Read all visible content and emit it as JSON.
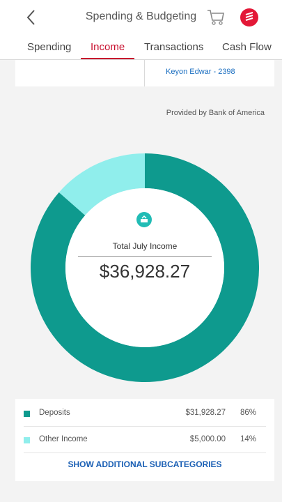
{
  "header": {
    "title": "Spending & Budgeting",
    "back_icon": "chevron-left-icon",
    "cart_icon": "cart-icon",
    "logo_icon": "bank-logo-icon",
    "brand_color": "#e31837"
  },
  "tabs": [
    {
      "label": "Spending",
      "active": false
    },
    {
      "label": "Income",
      "active": true
    },
    {
      "label": "Transactions",
      "active": false
    },
    {
      "label": "Cash Flow",
      "active": false
    }
  ],
  "account": {
    "name": "Keyon Edwar - 2398"
  },
  "provider": "Provided by Bank of America",
  "summary": {
    "label": "Total July Income",
    "value": "$36,928.27",
    "icon": "income-icon"
  },
  "chart_data": {
    "type": "pie",
    "categories": [
      "Deposits",
      "Other Income"
    ],
    "values": [
      31928.27,
      5000.0
    ],
    "percent": [
      86,
      14
    ],
    "colors": [
      "#0e9a8e",
      "#90eeec"
    ]
  },
  "legend": [
    {
      "label": "Deposits",
      "amount": "$31,928.27",
      "pct": "86%",
      "color": "#0e9a8e"
    },
    {
      "label": "Other Income",
      "amount": "$5,000.00",
      "pct": "14%",
      "color": "#90eeec"
    }
  ],
  "more_label": "SHOW ADDITIONAL SUBCATEGORIES"
}
